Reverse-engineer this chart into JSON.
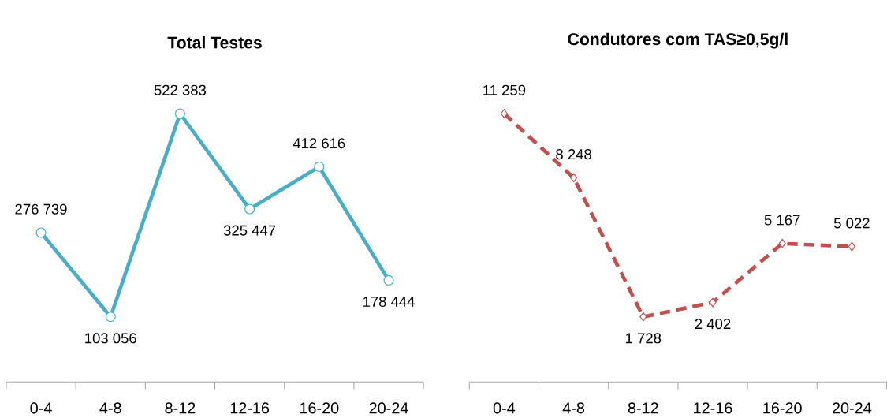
{
  "chart_data": [
    {
      "type": "line",
      "title": "Total Testes",
      "categories": [
        "0-4",
        "4-8",
        "8-12",
        "12-16",
        "16-20",
        "20-24"
      ],
      "marker": "circle",
      "line_style": "solid",
      "tick_labels": "x",
      "series": [
        {
          "color": "#4bacc6",
          "values": [
            276739,
            103056,
            522383,
            325447,
            412616,
            178444
          ],
          "value_labels": [
            "276 739",
            "103 056",
            "522 383",
            "325 447",
            "412 616",
            "178 444"
          ]
        }
      ]
    },
    {
      "type": "line",
      "title": "Condutores com TAS≥0,5g/l",
      "categories": [
        "0-4",
        "4-8",
        "8-12",
        "12-16",
        "16-20",
        "20-24"
      ],
      "marker": "diamond",
      "line_style": "dashed",
      "tick_labels": "x",
      "series": [
        {
          "color": "#c0504d",
          "values": [
            11259,
            8248,
            1728,
            2402,
            5167,
            5022
          ],
          "value_labels": [
            "11 259",
            "8 248",
            "1 728",
            "2 402",
            "5 167",
            "5 022"
          ]
        }
      ]
    }
  ]
}
